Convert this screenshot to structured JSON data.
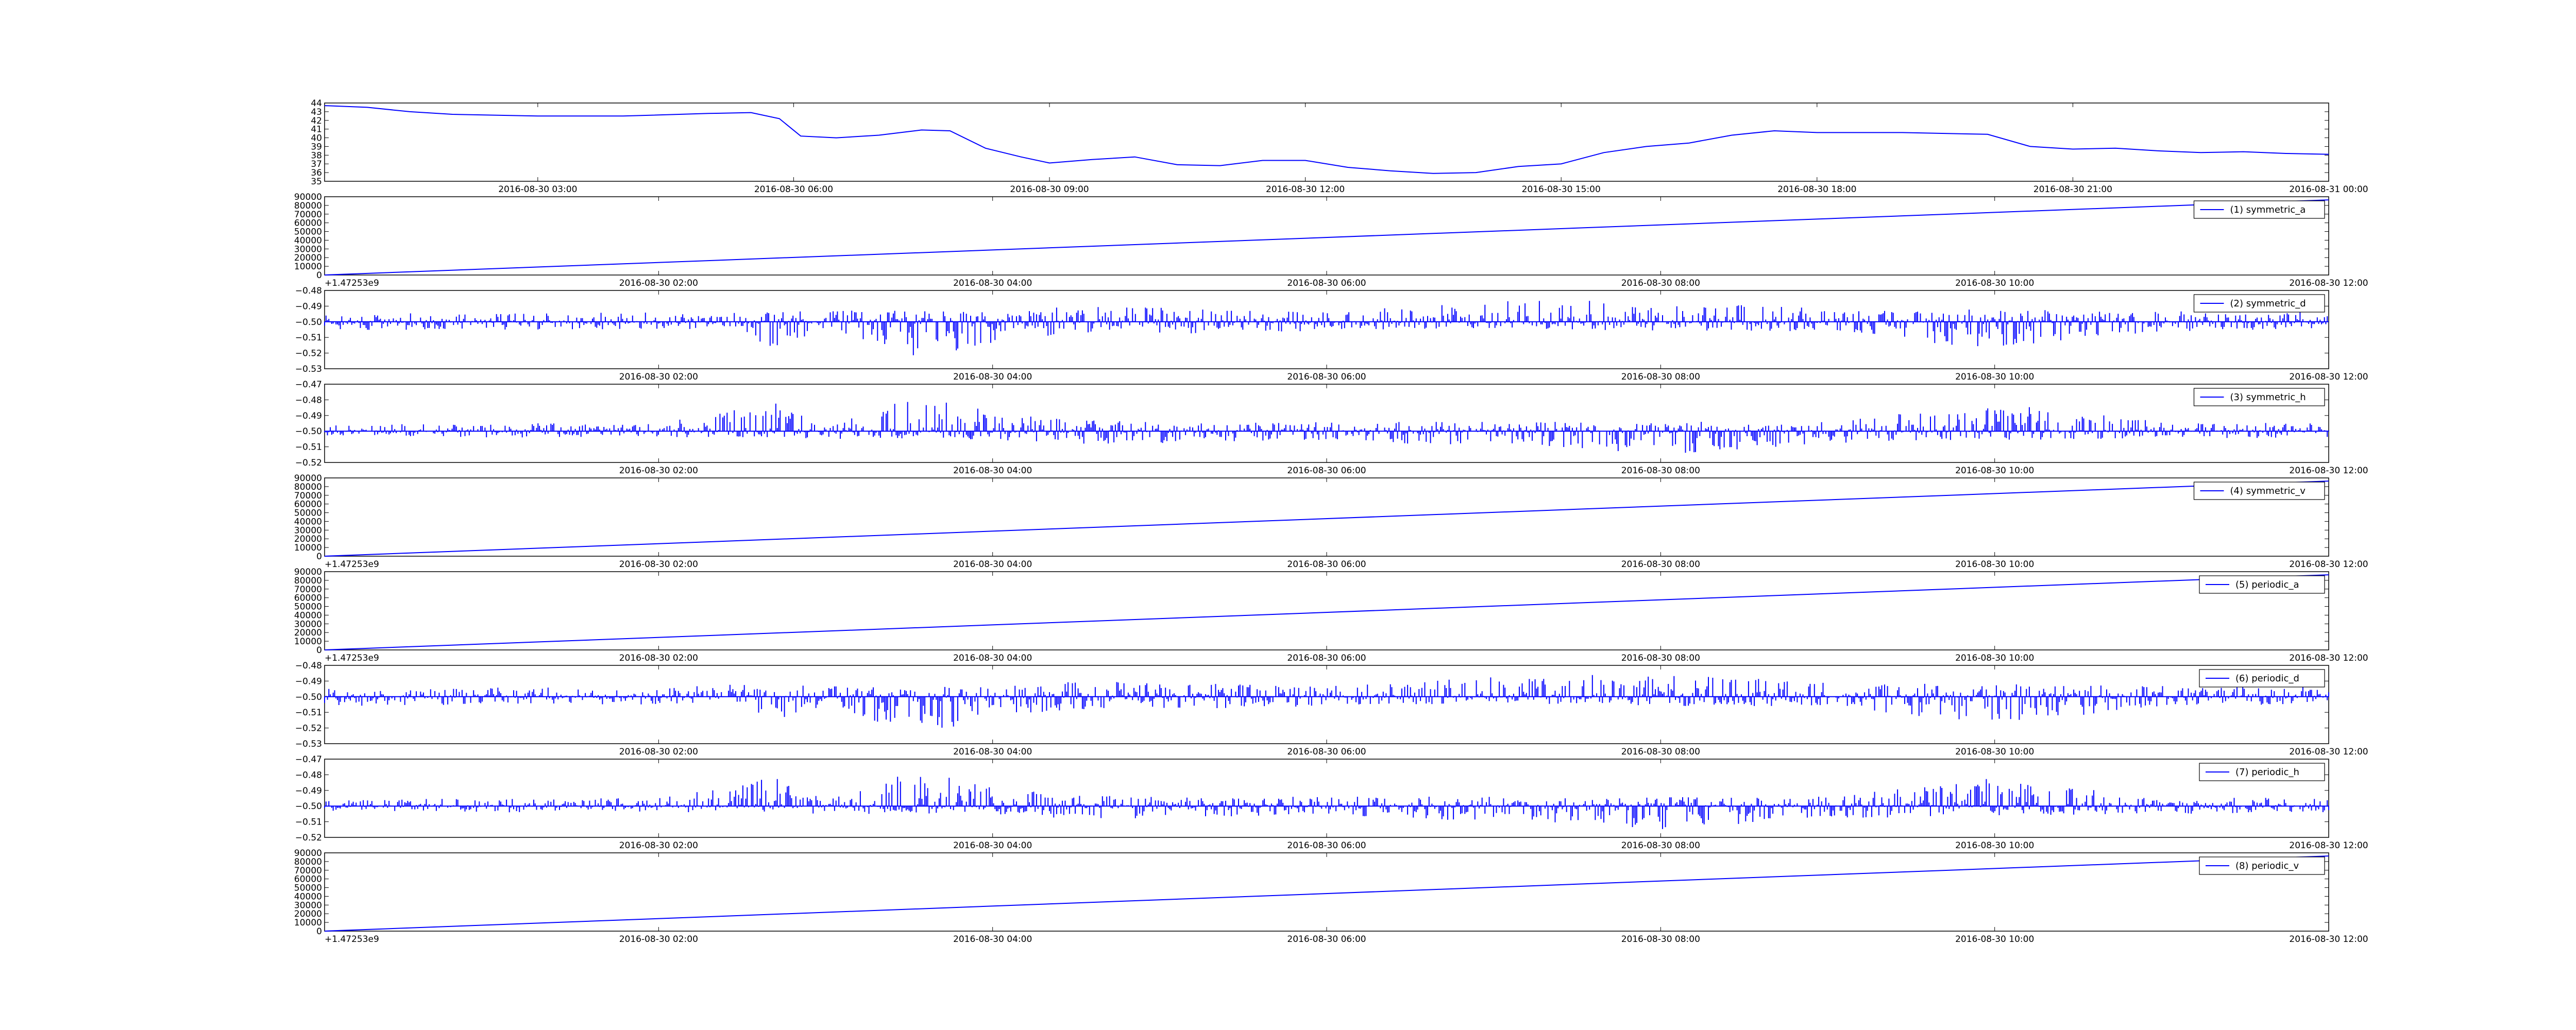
{
  "colors": {
    "line": "#0000ff",
    "axes": "#000000",
    "background": "#ffffff"
  },
  "chart_data": [
    {
      "type": "line",
      "title": "",
      "xlabel": "",
      "ylabel": "",
      "legend": null,
      "grid": false,
      "ylim": [
        35,
        44
      ],
      "yticks": [
        "35",
        "36",
        "37",
        "38",
        "39",
        "40",
        "41",
        "42",
        "43",
        "44"
      ],
      "x_range": [
        "2016-08-30 00:30",
        "2016-08-31 00:00"
      ],
      "xticks": [
        "2016-08-30 03:00",
        "2016-08-30 06:00",
        "2016-08-30 09:00",
        "2016-08-30 12:00",
        "2016-08-30 15:00",
        "2016-08-30 18:00",
        "2016-08-30 21:00",
        "2016-08-31 00:00"
      ],
      "series": [
        {
          "x": [
            "2016-08-30 00:30",
            "2016-08-30 01:00",
            "2016-08-30 01:30",
            "2016-08-30 02:00",
            "2016-08-30 03:00",
            "2016-08-30 04:00",
            "2016-08-30 05:00",
            "2016-08-30 05:30",
            "2016-08-30 05:50",
            "2016-08-30 06:05",
            "2016-08-30 06:30",
            "2016-08-30 07:00",
            "2016-08-30 07:30",
            "2016-08-30 07:50",
            "2016-08-30 08:15",
            "2016-08-30 08:40",
            "2016-08-30 09:00",
            "2016-08-30 09:30",
            "2016-08-30 10:00",
            "2016-08-30 10:30",
            "2016-08-30 11:00",
            "2016-08-30 11:30",
            "2016-08-30 12:00",
            "2016-08-30 12:30",
            "2016-08-30 13:00",
            "2016-08-30 13:30",
            "2016-08-30 14:00",
            "2016-08-30 14:30",
            "2016-08-30 15:00",
            "2016-08-30 15:30",
            "2016-08-30 16:00",
            "2016-08-30 16:30",
            "2016-08-30 17:00",
            "2016-08-30 17:30",
            "2016-08-30 18:00",
            "2016-08-30 19:00",
            "2016-08-30 20:00",
            "2016-08-30 20:30",
            "2016-08-30 21:00",
            "2016-08-30 21:30",
            "2016-08-30 22:00",
            "2016-08-30 22:30",
            "2016-08-30 23:00",
            "2016-08-30 23:30",
            "2016-08-31 00:00"
          ],
          "y": [
            43.7,
            43.5,
            43.0,
            42.7,
            42.5,
            42.5,
            42.8,
            42.9,
            42.2,
            40.2,
            40.0,
            40.3,
            40.9,
            40.8,
            38.8,
            37.8,
            37.1,
            37.5,
            37.8,
            36.9,
            36.8,
            37.4,
            37.4,
            36.6,
            36.2,
            35.9,
            36.0,
            36.7,
            37.0,
            38.3,
            39.0,
            39.4,
            40.3,
            40.8,
            40.6,
            40.6,
            40.4,
            39.0,
            38.7,
            38.8,
            38.5,
            38.3,
            38.4,
            38.2,
            38.1
          ]
        }
      ]
    },
    {
      "type": "line",
      "ylim": [
        0,
        90000
      ],
      "yticks": [
        "0",
        "10000",
        "20000",
        "30000",
        "40000",
        "50000",
        "60000",
        "70000",
        "80000",
        "90000"
      ],
      "x_range": [
        "2016-08-30 00:00",
        "2016-08-30 12:00"
      ],
      "xticks": [
        "2016-08-30 02:00",
        "2016-08-30 04:00",
        "2016-08-30 06:00",
        "2016-08-30 08:00",
        "2016-08-30 10:00",
        "2016-08-30 12:00"
      ],
      "offset_text": "+1.47253e9",
      "legend": "top-right",
      "series": [
        {
          "name": "(1) symmetric_a",
          "x": [
            "2016-08-30 00:00",
            "2016-08-30 12:00"
          ],
          "y": [
            0,
            86400
          ]
        }
      ]
    },
    {
      "type": "line",
      "ylim": [
        -0.53,
        -0.48
      ],
      "yticks": [
        "−0.53",
        "−0.52",
        "−0.51",
        "−0.50",
        "−0.49",
        "−0.48"
      ],
      "x_range": [
        "2016-08-30 00:00",
        "2016-08-30 12:00"
      ],
      "xticks": [
        "2016-08-30 02:00",
        "2016-08-30 04:00",
        "2016-08-30 06:00",
        "2016-08-30 08:00",
        "2016-08-30 10:00",
        "2016-08-30 12:00"
      ],
      "legend": "top-right",
      "series": [
        {
          "name": "(2) symmetric_d",
          "baseline": -0.5,
          "values_hourly_envelope": [
            {
              "hour": 0,
              "max": -0.495,
              "min": -0.506
            },
            {
              "hour": 1,
              "max": -0.494,
              "min": -0.505
            },
            {
              "hour": 2,
              "max": -0.494,
              "min": -0.505
            },
            {
              "hour": 2.5,
              "max": -0.492,
              "min": -0.504
            },
            {
              "hour": 2.7,
              "max": -0.494,
              "min": -0.521
            },
            {
              "hour": 3,
              "max": -0.492,
              "min": -0.504
            },
            {
              "hour": 3.5,
              "max": -0.493,
              "min": -0.525
            },
            {
              "hour": 4,
              "max": -0.494,
              "min": -0.514
            },
            {
              "hour": 4.5,
              "max": -0.49,
              "min": -0.508
            },
            {
              "hour": 5,
              "max": -0.491,
              "min": -0.508
            },
            {
              "hour": 6,
              "max": -0.493,
              "min": -0.506
            },
            {
              "hour": 7,
              "max": -0.487,
              "min": -0.504
            },
            {
              "hour": 7.5,
              "max": -0.486,
              "min": -0.505
            },
            {
              "hour": 8,
              "max": -0.486,
              "min": -0.506
            },
            {
              "hour": 8.5,
              "max": -0.488,
              "min": -0.506
            },
            {
              "hour": 9,
              "max": -0.491,
              "min": -0.506
            },
            {
              "hour": 10,
              "max": -0.492,
              "min": -0.518
            },
            {
              "hour": 11,
              "max": -0.493,
              "min": -0.506
            },
            {
              "hour": 12,
              "max": -0.494,
              "min": -0.505
            }
          ]
        }
      ]
    },
    {
      "type": "line",
      "ylim": [
        -0.52,
        -0.47
      ],
      "yticks": [
        "−0.52",
        "−0.51",
        "−0.50",
        "−0.49",
        "−0.48",
        "−0.47"
      ],
      "x_range": [
        "2016-08-30 00:00",
        "2016-08-30 12:00"
      ],
      "xticks": [
        "2016-08-30 02:00",
        "2016-08-30 04:00",
        "2016-08-30 06:00",
        "2016-08-30 08:00",
        "2016-08-30 10:00",
        "2016-08-30 12:00"
      ],
      "legend": "top-right",
      "series": [
        {
          "name": "(3) symmetric_h",
          "baseline": -0.5,
          "values_hourly_envelope": [
            {
              "hour": 0,
              "max": -0.496,
              "min": -0.503
            },
            {
              "hour": 1,
              "max": -0.495,
              "min": -0.504
            },
            {
              "hour": 2,
              "max": -0.495,
              "min": -0.504
            },
            {
              "hour": 2.7,
              "max": -0.481,
              "min": -0.504
            },
            {
              "hour": 3,
              "max": -0.496,
              "min": -0.505
            },
            {
              "hour": 3.5,
              "max": -0.477,
              "min": -0.505
            },
            {
              "hour": 4,
              "max": -0.487,
              "min": -0.506
            },
            {
              "hour": 4.5,
              "max": -0.493,
              "min": -0.508
            },
            {
              "hour": 5,
              "max": -0.494,
              "min": -0.508
            },
            {
              "hour": 6,
              "max": -0.494,
              "min": -0.506
            },
            {
              "hour": 7,
              "max": -0.494,
              "min": -0.51
            },
            {
              "hour": 7.5,
              "max": -0.494,
              "min": -0.512
            },
            {
              "hour": 8,
              "max": -0.494,
              "min": -0.515
            },
            {
              "hour": 9,
              "max": -0.494,
              "min": -0.508
            },
            {
              "hour": 10,
              "max": -0.482,
              "min": -0.506
            },
            {
              "hour": 11,
              "max": -0.494,
              "min": -0.505
            },
            {
              "hour": 12,
              "max": -0.495,
              "min": -0.504
            }
          ]
        }
      ]
    },
    {
      "type": "line",
      "ylim": [
        0,
        90000
      ],
      "yticks": [
        "0",
        "10000",
        "20000",
        "30000",
        "40000",
        "50000",
        "60000",
        "70000",
        "80000",
        "90000"
      ],
      "x_range": [
        "2016-08-30 00:00",
        "2016-08-30 12:00"
      ],
      "xticks": [
        "2016-08-30 02:00",
        "2016-08-30 04:00",
        "2016-08-30 06:00",
        "2016-08-30 08:00",
        "2016-08-30 10:00",
        "2016-08-30 12:00"
      ],
      "offset_text": "+1.47253e9",
      "legend": "top-right",
      "series": [
        {
          "name": "(4) symmetric_v",
          "x": [
            "2016-08-30 00:00",
            "2016-08-30 12:00"
          ],
          "y": [
            0,
            86400
          ]
        }
      ]
    },
    {
      "type": "line",
      "ylim": [
        0,
        90000
      ],
      "yticks": [
        "0",
        "10000",
        "20000",
        "30000",
        "40000",
        "50000",
        "60000",
        "70000",
        "80000",
        "90000"
      ],
      "x_range": [
        "2016-08-30 00:00",
        "2016-08-30 12:00"
      ],
      "xticks": [
        "2016-08-30 02:00",
        "2016-08-30 04:00",
        "2016-08-30 06:00",
        "2016-08-30 08:00",
        "2016-08-30 10:00",
        "2016-08-30 12:00"
      ],
      "offset_text": "+1.47253e9",
      "legend": "top-right",
      "series": [
        {
          "name": "(5) periodic_a",
          "x": [
            "2016-08-30 00:00",
            "2016-08-30 12:00"
          ],
          "y": [
            0,
            86400
          ]
        }
      ]
    },
    {
      "type": "line",
      "ylim": [
        -0.53,
        -0.48
      ],
      "yticks": [
        "−0.53",
        "−0.52",
        "−0.51",
        "−0.50",
        "−0.49",
        "−0.48"
      ],
      "x_range": [
        "2016-08-30 00:00",
        "2016-08-30 12:00"
      ],
      "xticks": [
        "2016-08-30 02:00",
        "2016-08-30 04:00",
        "2016-08-30 06:00",
        "2016-08-30 08:00",
        "2016-08-30 10:00",
        "2016-08-30 12:00"
      ],
      "legend": "top-right",
      "series": [
        {
          "name": "(6) periodic_d",
          "baseline": -0.5,
          "values_hourly_envelope": [
            {
              "hour": 0,
              "max": -0.495,
              "min": -0.506
            },
            {
              "hour": 1,
              "max": -0.494,
              "min": -0.505
            },
            {
              "hour": 2,
              "max": -0.494,
              "min": -0.505
            },
            {
              "hour": 2.5,
              "max": -0.492,
              "min": -0.504
            },
            {
              "hour": 2.7,
              "max": -0.494,
              "min": -0.521
            },
            {
              "hour": 3,
              "max": -0.492,
              "min": -0.504
            },
            {
              "hour": 3.5,
              "max": -0.493,
              "min": -0.525
            },
            {
              "hour": 4,
              "max": -0.494,
              "min": -0.514
            },
            {
              "hour": 4.5,
              "max": -0.49,
              "min": -0.508
            },
            {
              "hour": 5,
              "max": -0.491,
              "min": -0.508
            },
            {
              "hour": 6,
              "max": -0.493,
              "min": -0.506
            },
            {
              "hour": 7,
              "max": -0.487,
              "min": -0.504
            },
            {
              "hour": 7.5,
              "max": -0.486,
              "min": -0.505
            },
            {
              "hour": 8,
              "max": -0.486,
              "min": -0.506
            },
            {
              "hour": 8.5,
              "max": -0.488,
              "min": -0.506
            },
            {
              "hour": 9,
              "max": -0.491,
              "min": -0.506
            },
            {
              "hour": 10,
              "max": -0.492,
              "min": -0.518
            },
            {
              "hour": 11,
              "max": -0.493,
              "min": -0.506
            },
            {
              "hour": 12,
              "max": -0.494,
              "min": -0.505
            }
          ]
        }
      ]
    },
    {
      "type": "line",
      "ylim": [
        -0.52,
        -0.47
      ],
      "yticks": [
        "−0.52",
        "−0.51",
        "−0.50",
        "−0.49",
        "−0.48",
        "−0.47"
      ],
      "x_range": [
        "2016-08-30 00:00",
        "2016-08-30 12:00"
      ],
      "xticks": [
        "2016-08-30 02:00",
        "2016-08-30 04:00",
        "2016-08-30 06:00",
        "2016-08-30 08:00",
        "2016-08-30 10:00",
        "2016-08-30 12:00"
      ],
      "legend": "top-right",
      "series": [
        {
          "name": "(7) periodic_h",
          "baseline": -0.5,
          "values_hourly_envelope": [
            {
              "hour": 0,
              "max": -0.496,
              "min": -0.503
            },
            {
              "hour": 1,
              "max": -0.495,
              "min": -0.504
            },
            {
              "hour": 2,
              "max": -0.495,
              "min": -0.504
            },
            {
              "hour": 2.7,
              "max": -0.481,
              "min": -0.504
            },
            {
              "hour": 3,
              "max": -0.496,
              "min": -0.505
            },
            {
              "hour": 3.5,
              "max": -0.477,
              "min": -0.505
            },
            {
              "hour": 4,
              "max": -0.487,
              "min": -0.506
            },
            {
              "hour": 4.5,
              "max": -0.493,
              "min": -0.508
            },
            {
              "hour": 5,
              "max": -0.494,
              "min": -0.508
            },
            {
              "hour": 6,
              "max": -0.494,
              "min": -0.506
            },
            {
              "hour": 7,
              "max": -0.494,
              "min": -0.51
            },
            {
              "hour": 7.5,
              "max": -0.494,
              "min": -0.512
            },
            {
              "hour": 8,
              "max": -0.494,
              "min": -0.515
            },
            {
              "hour": 9,
              "max": -0.494,
              "min": -0.508
            },
            {
              "hour": 10,
              "max": -0.482,
              "min": -0.506
            },
            {
              "hour": 11,
              "max": -0.494,
              "min": -0.505
            },
            {
              "hour": 12,
              "max": -0.495,
              "min": -0.504
            }
          ]
        }
      ]
    },
    {
      "type": "line",
      "ylim": [
        0,
        90000
      ],
      "yticks": [
        "0",
        "10000",
        "20000",
        "30000",
        "40000",
        "50000",
        "60000",
        "70000",
        "80000",
        "90000"
      ],
      "x_range": [
        "2016-08-30 00:00",
        "2016-08-30 12:00"
      ],
      "xticks": [
        "2016-08-30 02:00",
        "2016-08-30 04:00",
        "2016-08-30 06:00",
        "2016-08-30 08:00",
        "2016-08-30 10:00",
        "2016-08-30 12:00"
      ],
      "offset_text": "+1.47253e9",
      "legend": "top-right",
      "series": [
        {
          "name": "(8) periodic_v",
          "x": [
            "2016-08-30 00:00",
            "2016-08-30 12:00"
          ],
          "y": [
            0,
            86400
          ]
        }
      ]
    }
  ]
}
